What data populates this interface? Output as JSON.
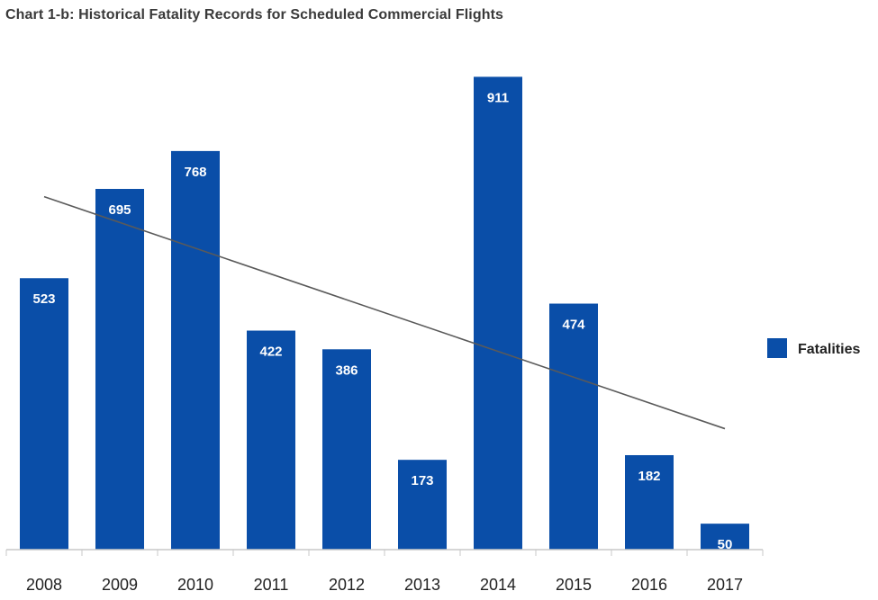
{
  "title": "Chart 1-b: Historical Fatality Records for Scheduled Commercial Flights",
  "colors": {
    "bar": "#0a4ea8",
    "trend": "#5a5a5a",
    "axis": "#c8c8c8"
  },
  "chart_data": {
    "type": "bar",
    "title": "Chart 1-b: Historical Fatality Records for Scheduled Commercial Flights",
    "categories": [
      "2008",
      "2009",
      "2010",
      "2011",
      "2012",
      "2013",
      "2014",
      "2015",
      "2016",
      "2017"
    ],
    "series": [
      {
        "name": "Fatalities",
        "values": [
          523,
          695,
          768,
          422,
          386,
          173,
          911,
          474,
          182,
          50
        ]
      }
    ],
    "trendline": {
      "type": "linear",
      "start": 680,
      "end": 233
    },
    "xlabel": "",
    "ylabel": "",
    "ylim": [
      0,
      955
    ],
    "grid": false,
    "legend": {
      "position": "right",
      "entries": [
        "Fatalities"
      ]
    }
  }
}
